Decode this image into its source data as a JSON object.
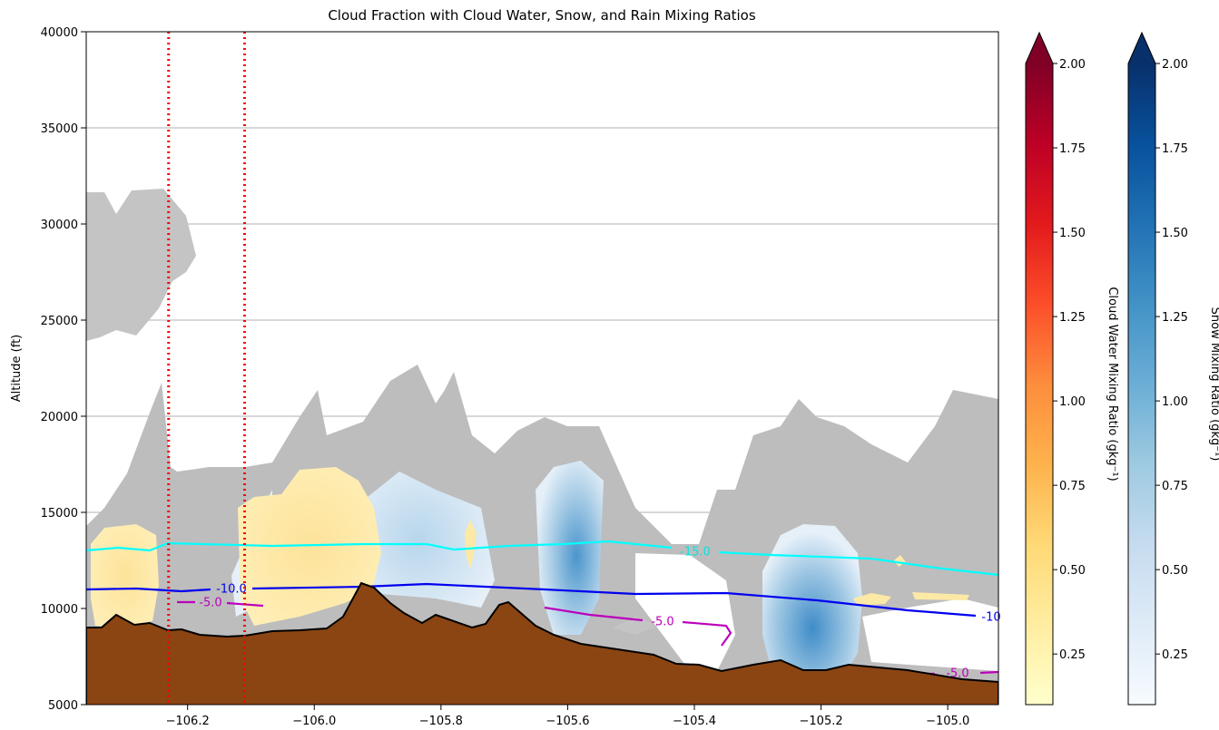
{
  "chart_data": {
    "type": "contourf",
    "title": "Cloud Fraction with Cloud Water, Snow, and Rain Mixing Ratios",
    "ylabel": "Altitude (ft)",
    "xlim": [
      -106.36,
      -104.92
    ],
    "xticks": [
      {
        "value": -106.2,
        "label": "−106.2"
      },
      {
        "value": -106.0,
        "label": "−106.0"
      },
      {
        "value": -105.8,
        "label": "−105.8"
      },
      {
        "value": -105.6,
        "label": "−105.6"
      },
      {
        "value": -105.4,
        "label": "−105.4"
      },
      {
        "value": -105.2,
        "label": "−105.2"
      },
      {
        "value": -105.0,
        "label": "−105.0"
      }
    ],
    "ylim": [
      5000,
      40000
    ],
    "yticks": [
      5000,
      10000,
      15000,
      20000,
      25000,
      30000,
      35000,
      40000
    ],
    "grid": true,
    "vlines": {
      "values": [
        -106.23,
        -106.11
      ],
      "color": "#ff0000"
    },
    "annotations": [
      "-15.0",
      "-10.0",
      "-10",
      "-5.0",
      "-5.0",
      "-5.0"
    ],
    "colorbars": [
      {
        "label": "Cloud Water Mixing Ratio (gkg⁻¹)",
        "colormap": [
          "#ffffcc",
          "#ffeda0",
          "#fed976",
          "#feb24c",
          "#fd8d3c",
          "#fc4e2a",
          "#e31a1c",
          "#bd0026",
          "#800026"
        ],
        "clim": [
          0.1,
          2.0
        ],
        "extend_color": "#800026",
        "ticks": [
          0.25,
          {
            "value": 0.5,
            "label": "0.50"
          },
          0.75,
          {
            "value": 1.0,
            "label": "1.00"
          },
          1.25,
          {
            "value": 1.5,
            "label": "1.50"
          },
          1.75,
          {
            "value": 2.0,
            "label": "2.00"
          }
        ]
      },
      {
        "label": "Snow Mixing Ratio (gkg⁻¹)",
        "colormap": [
          "#f7fbff",
          "#deebf7",
          "#c6dbef",
          "#9ecae1",
          "#6baed6",
          "#4292c6",
          "#2171b5",
          "#08519c",
          "#08306b"
        ],
        "clim": [
          0.1,
          2.0
        ],
        "extend_color": "#08306b",
        "ticks": [
          0.25,
          {
            "value": 0.5,
            "label": "0.50"
          },
          0.75,
          {
            "value": 1.0,
            "label": "1.00"
          },
          1.25,
          {
            "value": 1.5,
            "label": "1.50"
          },
          1.75,
          {
            "value": 2.0,
            "label": "2.00"
          }
        ]
      }
    ]
  }
}
